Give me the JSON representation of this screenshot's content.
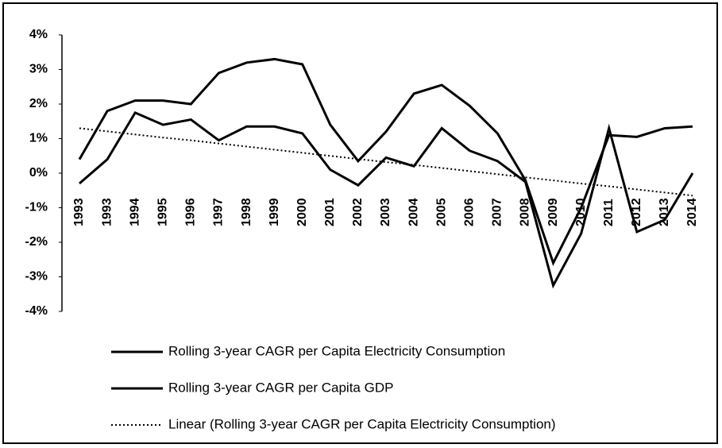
{
  "chart_data": {
    "type": "line",
    "categories": [
      "1993",
      "1993",
      "1994",
      "1995",
      "1996",
      "1997",
      "1998",
      "1999",
      "2000",
      "2001",
      "2002",
      "2003",
      "2004",
      "2005",
      "2006",
      "2007",
      "2008",
      "2009",
      "2010",
      "2011",
      "2012",
      "2013",
      "2014"
    ],
    "series": [
      {
        "name": "Rolling 3-year CAGR per Capita Electricity Consumption",
        "color": "#000000",
        "style": "solid",
        "values": [
          -0.3,
          0.4,
          1.75,
          1.4,
          1.55,
          0.95,
          1.35,
          1.35,
          1.15,
          0.1,
          -0.35,
          0.45,
          0.2,
          1.3,
          0.65,
          0.35,
          -0.25,
          -3.25,
          -1.75,
          1.3,
          -1.7,
          -1.35,
          0.0
        ]
      },
      {
        "name": "Rolling 3-year CAGR per Capita GDP",
        "color": "#000000",
        "style": "solid",
        "values": [
          0.4,
          1.8,
          2.1,
          2.1,
          2.0,
          2.9,
          3.2,
          3.3,
          3.15,
          1.4,
          0.35,
          1.2,
          2.3,
          2.55,
          1.95,
          1.15,
          -0.2,
          -2.6,
          -1.0,
          1.1,
          1.05,
          1.3,
          1.35
        ]
      },
      {
        "name": "Linear (Rolling 3-year CAGR per Capita Electricity Consumption)",
        "color": "#000000",
        "style": "dotted",
        "values": [
          1.3,
          1.21,
          1.12,
          1.03,
          0.95,
          0.86,
          0.77,
          0.68,
          0.59,
          0.5,
          0.41,
          0.32,
          0.24,
          0.15,
          0.06,
          -0.03,
          -0.12,
          -0.21,
          -0.3,
          -0.38,
          -0.47,
          -0.56,
          -0.65
        ]
      }
    ],
    "ylim": [
      -4,
      4
    ],
    "yticks": [
      {
        "value": 4,
        "label": "4%"
      },
      {
        "value": 3,
        "label": "3%"
      },
      {
        "value": 2,
        "label": "2%"
      },
      {
        "value": 1,
        "label": "1%"
      },
      {
        "value": 0,
        "label": "0%"
      },
      {
        "value": -1,
        "label": "-1%"
      },
      {
        "value": -2,
        "label": "-2%"
      },
      {
        "value": -3,
        "label": "-3%"
      },
      {
        "value": -4,
        "label": "-4%"
      }
    ],
    "grid": false,
    "legend": "bottom"
  }
}
